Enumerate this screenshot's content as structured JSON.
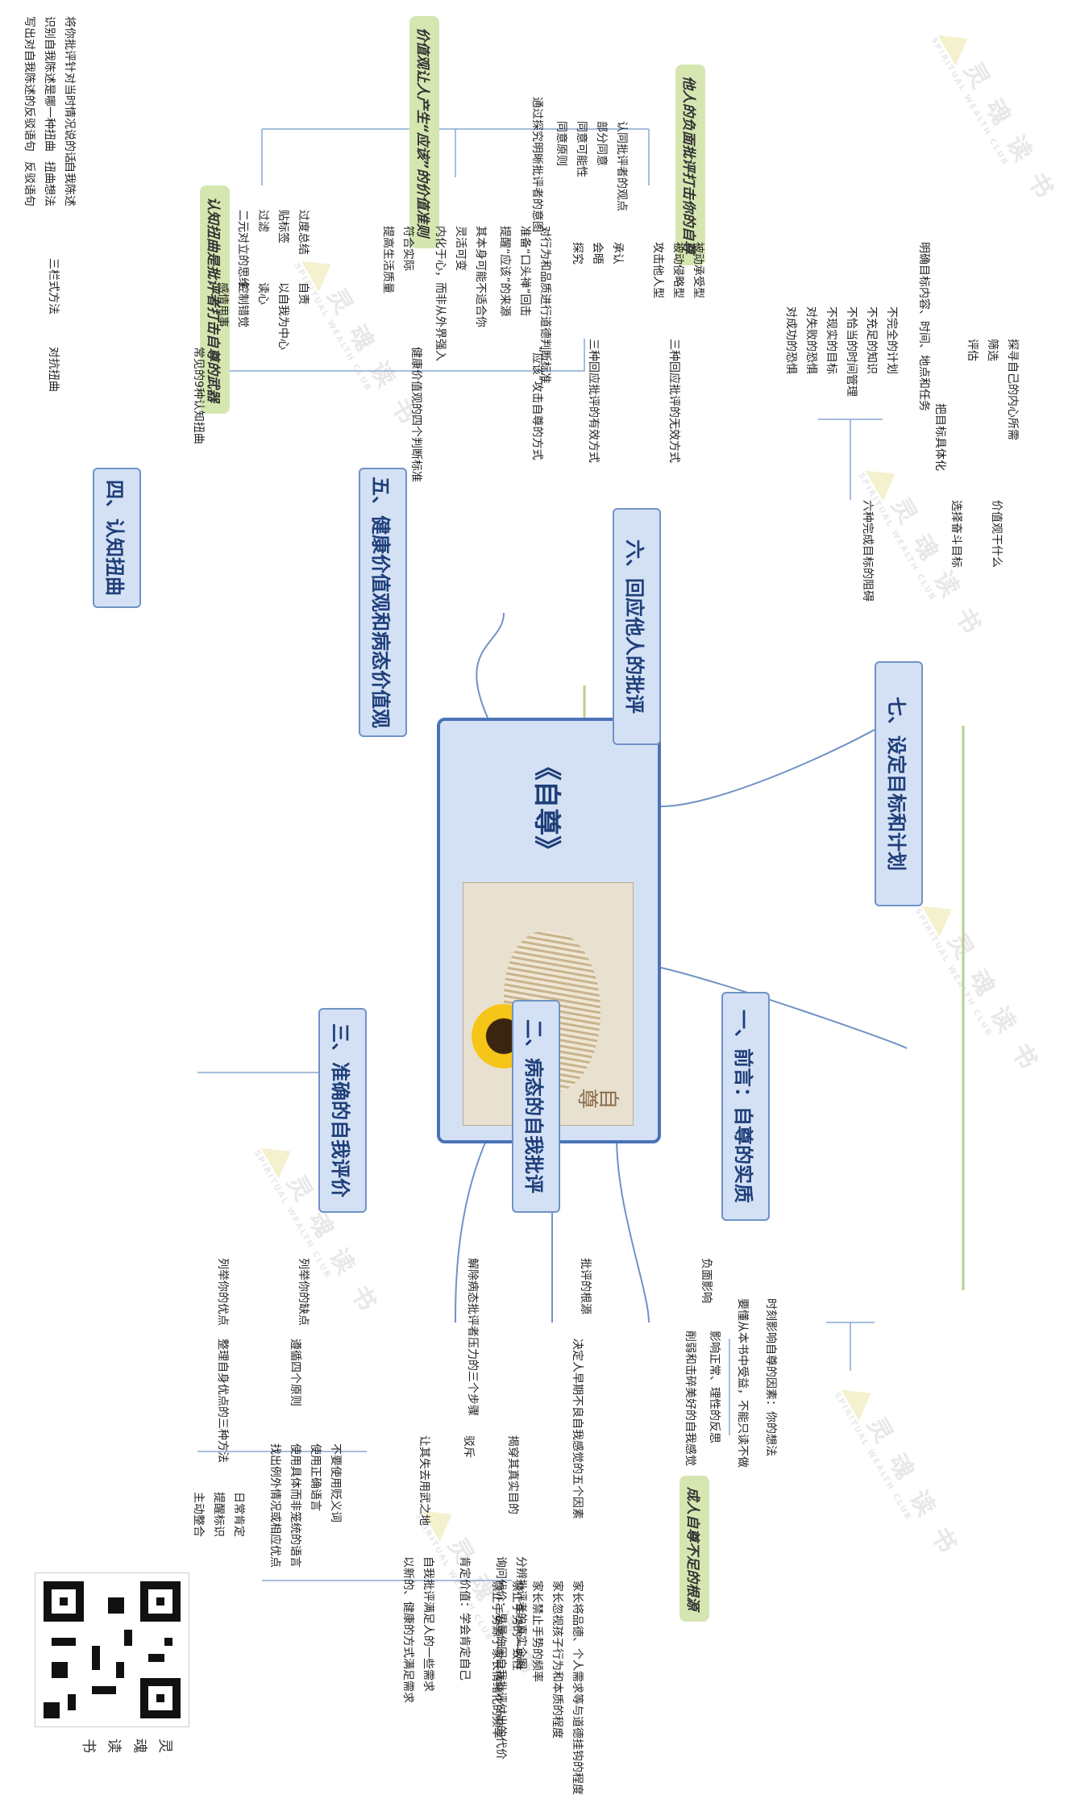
{
  "root": {
    "title": "《自尊》",
    "cover_title": "自尊"
  },
  "watermark": {
    "brand": "灵 魂 读 书",
    "sub": "SPIRITUAL WEALTH CLUB"
  },
  "branches": {
    "b1": {
      "title": "一、前言：自尊的实质",
      "items": [
        "时刻影响自尊的因素：你的想法",
        "要懂从本书中受益，不能只读不做"
      ]
    },
    "b2": {
      "title": "二、病态的自我批评",
      "negative": "负面影响",
      "neg_items": [
        "影响正常、理性的反思",
        "削弱和击碎美好的自我感觉"
      ],
      "green": "成人自尊不足的根源",
      "source": "批评的根源",
      "source_item": "决定人早期不良自我感觉的五个因素",
      "factors": [
        "家长将品德、个人需求等与道德挂钩的程度",
        "家长忽视孩子行为和本质的程度",
        "家长禁止手势的频率",
        "禁止手势的一致性",
        "禁止手势源于家长情绪化的频率"
      ],
      "defuse": "解除病态批评者压力的三个步骤",
      "steps": [
        "揭穿其真实目的",
        "驳斥",
        "让其失去用武之地"
      ],
      "step1_items": [
        "分辨批评者的真实企图",
        "询问代价：思量你因自我批评付出的代价"
      ],
      "step2_items": [
        "肯定价值：学会肯定自己"
      ],
      "step3_items": [
        "自我批评满足人的一些需求",
        "以新的、健康的方式满足需求"
      ]
    },
    "b3": {
      "title": "三、准确的自我评价",
      "left": "列举你的缺点",
      "left_item": "遵循四个原则",
      "rules": [
        "不要使用贬义词",
        "使用正确语言",
        "使用具体而非笼统的语言",
        "找出例外情况或相应优点"
      ],
      "right": "列举你的优点",
      "right_item": "整理自身优点的三种方法",
      "methods": [
        "日常肯定",
        "提醒标识",
        "主动整合"
      ]
    },
    "b4": {
      "title": "四、认知扭曲",
      "green": "认知扭曲是批评者打击自尊的武器",
      "left": "常见的9种认知扭曲",
      "nine": [
        "过度总结",
        "贴标签",
        "过滤",
        "二元对立的思维",
        "自责",
        "以自我为中心",
        "读心",
        "控制错觉",
        "感情用事"
      ],
      "right": "对抗扭曲",
      "right_item": "三栏式方法",
      "cols": [
        "自我陈述",
        "扭曲想法",
        "反驳语句"
      ],
      "col_items": [
        "将你批评针对当时情况说的话",
        "识别自我陈述是哪一种扭曲",
        "写出对自我陈述的反驳语句"
      ]
    },
    "b5": {
      "title": "五、健康价值观和病态价值观",
      "green": "价值观让人产生“应该”的价值准则",
      "a": "“应该”攻击自尊的方式",
      "a_items": [
        "对行为和品质进行道德判断标准",
        "准备“口头禅”回击",
        "提醒“应该”的来源"
      ],
      "a_sub": [
        "其本身可能不适合你",
        "灵活可变",
        "内化于心，而非从外界强入"
      ],
      "b": "健康价值观的四个判断标准",
      "b_items": [
        "符合实际",
        "提高生活质量"
      ]
    },
    "b6": {
      "title": "六、回应他人的批评",
      "green": "他人的负面批评打击你的自尊",
      "a": "三种回应批评的无效方式",
      "a_items": [
        "被动承受型",
        "被动侵略型",
        "攻击他人型"
      ],
      "b": "三种回应批评的有效方式",
      "b_items": [
        "承认",
        "会晤",
        "探究"
      ],
      "b_sub": [
        "认同批评者的观点",
        "部分同意",
        "同意可能性",
        "同意原则",
        "通过探究明晰批评者的意图"
      ]
    },
    "b7": {
      "title": "七、设定目标和计划",
      "a": "价值观干什么",
      "a_items": [
        "探寻自己的内心所需",
        "筛选",
        "评估"
      ],
      "b": "选择奋斗目标",
      "b_item": "把目标具体化",
      "b_sub": [
        "明确目标内容、时间、地点和任务"
      ],
      "c": "六种完成目标的阻碍",
      "c_items": [
        "不完全的计划",
        "不充足的知识",
        "不恰当的时间管理",
        "不现实的目标",
        "对失败的恐惧",
        "对成功的恐惧"
      ]
    }
  }
}
